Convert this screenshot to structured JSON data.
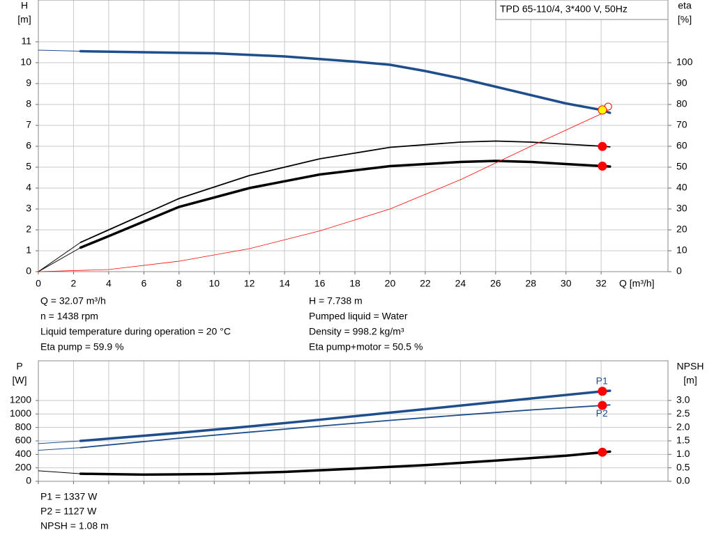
{
  "chart_data": [
    {
      "type": "line",
      "box_title": "TPD 65-110/4, 3*400 V, 50Hz",
      "ylabel": "H",
      "yunit": "[m]",
      "y2label": "eta",
      "y2unit": "[%]",
      "xlabel": "Q [m³/h]",
      "xlim": [
        0,
        35.8
      ],
      "ylim": [
        0,
        13
      ],
      "y2lim": [
        0,
        130
      ],
      "xticks": [
        0,
        2,
        4,
        6,
        8,
        10,
        12,
        14,
        16,
        18,
        20,
        22,
        24,
        26,
        28,
        30,
        32
      ],
      "yticks": [
        0,
        1,
        2,
        3,
        4,
        5,
        6,
        7,
        8,
        9,
        10,
        11
      ],
      "y2ticks": [
        0,
        10,
        20,
        30,
        40,
        50,
        60,
        70,
        80,
        90,
        100
      ],
      "grid": true,
      "show_xtick_labels": true,
      "series": [
        {
          "color": "#1f4e8c",
          "width": 1,
          "axis": "y",
          "x": [
            0,
            2.4
          ],
          "values": [
            10.6,
            10.55
          ]
        },
        {
          "color": "#1f4e8c",
          "width": 3.5,
          "axis": "y",
          "x": [
            2.4,
            6,
            10,
            14,
            18,
            20,
            22,
            24,
            26,
            28,
            30,
            32,
            32.5
          ],
          "values": [
            10.55,
            10.5,
            10.45,
            10.3,
            10.05,
            9.9,
            9.6,
            9.25,
            8.85,
            8.45,
            8.05,
            7.74,
            7.6
          ]
        },
        {
          "color": "#000000",
          "width": 1,
          "axis": "y2",
          "x": [
            0,
            2.4
          ],
          "values": [
            0,
            14
          ]
        },
        {
          "color": "#000000",
          "width": 1.8,
          "axis": "y2",
          "x": [
            2.4,
            4,
            8,
            12,
            16,
            20,
            24,
            26,
            28,
            30,
            32.1,
            32.5
          ],
          "values": [
            14,
            20,
            35,
            46,
            54,
            59.5,
            62,
            62.5,
            62,
            61,
            60,
            59.7
          ]
        },
        {
          "color": "#000000",
          "width": 1,
          "axis": "y2",
          "x": [
            0,
            2.4
          ],
          "values": [
            0,
            11.5
          ]
        },
        {
          "color": "#000000",
          "width": 3.5,
          "axis": "y2",
          "x": [
            2.4,
            4,
            8,
            12,
            16,
            20,
            24,
            26,
            28,
            30,
            32.1,
            32.5
          ],
          "values": [
            11.5,
            17,
            31,
            40,
            46.5,
            50.5,
            52.5,
            53,
            52.5,
            51.5,
            50.5,
            50.3
          ]
        },
        {
          "color": "#ff0000",
          "width": 0.8,
          "axis": "y",
          "x": [
            0,
            4,
            8,
            12,
            16,
            20,
            24,
            28,
            32,
            32.4
          ],
          "values": [
            0,
            0.1,
            0.5,
            1.1,
            1.95,
            3.0,
            4.4,
            6.0,
            7.55,
            7.9
          ]
        }
      ],
      "points": [
        {
          "x": 32.4,
          "y": 7.9,
          "axis": "y",
          "color": "#ff0000",
          "fill": "#ffffff"
        },
        {
          "x": 32.07,
          "y": 7.738,
          "axis": "y",
          "color": "#ff0000",
          "fill": "#ffff00"
        },
        {
          "x": 32.07,
          "y": 59.9,
          "axis": "y2",
          "color": "#ff0000",
          "fill": "#ff0000"
        },
        {
          "x": 32.07,
          "y": 50.5,
          "axis": "y2",
          "color": "#ff0000",
          "fill": "#ff0000"
        }
      ],
      "annotations": [
        "Q = 32.07 m³/h",
        "n = 1438 rpm",
        "Liquid temperature during operation = 20 °C",
        "Eta pump = 59.9 %",
        "H = 7.738 m",
        "Pumped liquid = Water",
        "Density = 998.2 kg/m³",
        "Eta pump+motor = 50.5 %"
      ]
    },
    {
      "type": "line",
      "ylabel": "P",
      "yunit": "[W]",
      "y2label": "NPSH",
      "y2unit": "[m]",
      "xlim": [
        0,
        35.8
      ],
      "ylim": [
        0,
        1790
      ],
      "y2lim": [
        0,
        4.47
      ],
      "xticks": [
        0,
        2,
        4,
        6,
        8,
        10,
        12,
        14,
        16,
        18,
        20,
        22,
        24,
        26,
        28,
        30,
        32
      ],
      "yticks": [
        0,
        200,
        400,
        600,
        800,
        1000,
        1200
      ],
      "y2ticks": [
        {
          "value": 0,
          "label": "0.0"
        },
        {
          "value": 0.5,
          "label": "0.5"
        },
        {
          "value": 1,
          "label": "1.0"
        },
        {
          "value": 1.5,
          "label": "1.5"
        },
        {
          "value": 2,
          "label": "2.0"
        },
        {
          "value": 2.5,
          "label": "2.5"
        },
        {
          "value": 3,
          "label": "3.0"
        }
      ],
      "grid": true,
      "show_xtick_labels": false,
      "series": [
        {
          "color": "#1f4e8c",
          "width": 1,
          "axis": "y",
          "x": [
            0,
            2.4
          ],
          "values": [
            560,
            600
          ]
        },
        {
          "color": "#1f4e8c",
          "width": 3.5,
          "axis": "y",
          "label": "P1",
          "label_position": "above",
          "x": [
            2.4,
            8,
            12,
            16,
            20,
            24,
            28,
            32.1,
            32.5
          ],
          "values": [
            600,
            720,
            815,
            915,
            1020,
            1125,
            1230,
            1337,
            1345
          ]
        },
        {
          "color": "#1f4e8c",
          "width": 1,
          "axis": "y",
          "x": [
            0,
            2.4
          ],
          "values": [
            460,
            500
          ]
        },
        {
          "color": "#1f4e8c",
          "width": 1.8,
          "axis": "y",
          "label": "P2",
          "label_position": "below",
          "x": [
            2.4,
            8,
            12,
            16,
            20,
            24,
            28,
            32.1,
            32.5
          ],
          "values": [
            500,
            640,
            730,
            820,
            905,
            985,
            1060,
            1127,
            1135
          ]
        },
        {
          "color": "#000000",
          "width": 1,
          "axis": "y2",
          "x": [
            0,
            2.4
          ],
          "values": [
            0.39,
            0.28
          ]
        },
        {
          "color": "#000000",
          "width": 3.5,
          "axis": "y2",
          "x": [
            2.4,
            6,
            10,
            14,
            18,
            22,
            26,
            30,
            32.1,
            32.5
          ],
          "values": [
            0.28,
            0.25,
            0.27,
            0.35,
            0.47,
            0.6,
            0.77,
            0.95,
            1.08,
            1.1
          ]
        }
      ],
      "points": [
        {
          "x": 32.07,
          "y": 1337,
          "axis": "y",
          "color": "#ff0000",
          "fill": "#ff0000"
        },
        {
          "x": 32.07,
          "y": 1127,
          "axis": "y",
          "color": "#ff0000",
          "fill": "#ff0000"
        },
        {
          "x": 32.07,
          "y": 1.08,
          "axis": "y2",
          "color": "#ff0000",
          "fill": "#ff0000"
        }
      ],
      "annotations": [
        "P1 = 1337 W",
        "P2 = 1127 W",
        "NPSH = 1.08 m"
      ]
    }
  ]
}
